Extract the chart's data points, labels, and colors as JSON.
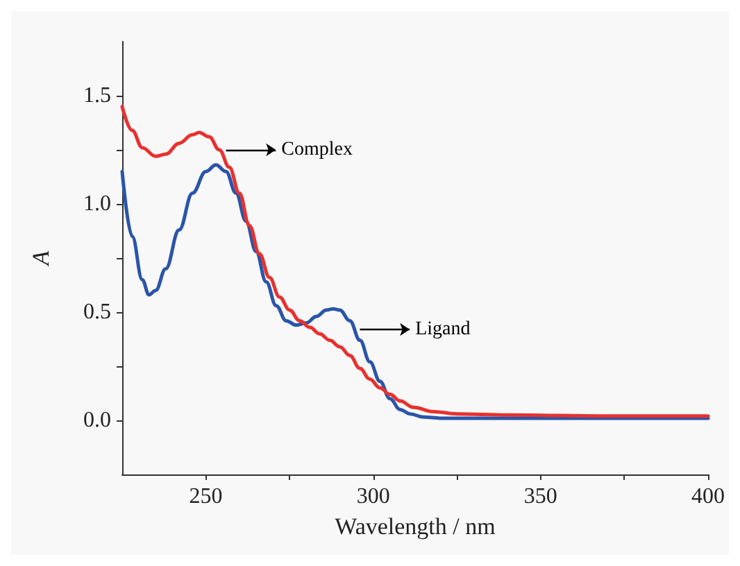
{
  "chart_data": {
    "type": "line",
    "xlabel": "Wavelength / nm",
    "ylabel": "A",
    "xlim": [
      225,
      400
    ],
    "ylim": [
      -0.25,
      1.75
    ],
    "xticks": [
      250,
      {
        "value": 275,
        "label": null
      },
      300,
      {
        "value": 325,
        "label": null
      },
      350,
      {
        "value": 375,
        "label": null
      },
      400
    ],
    "yticks": [
      {
        "value": 0,
        "label": "0.0"
      },
      {
        "value": 0.25,
        "label": null
      },
      {
        "value": 0.5,
        "label": "0.5"
      },
      {
        "value": 0.75,
        "label": null
      },
      {
        "value": 1,
        "label": "1.0"
      },
      {
        "value": 1.25,
        "label": null
      },
      {
        "value": 1.5,
        "label": "1.5"
      }
    ],
    "grid": false,
    "marker": "none",
    "line_style": "solid",
    "series": [
      {
        "color": "#2a55a8",
        "x": [
          225,
          228,
          231,
          233,
          235,
          238,
          242,
          246,
          250,
          253,
          256,
          259,
          262,
          265,
          268,
          271,
          274,
          277,
          280,
          283,
          286,
          288,
          290,
          293,
          296,
          299,
          302,
          305,
          308,
          311,
          315,
          320,
          340,
          370,
          400
        ],
        "values": [
          1.15,
          0.85,
          0.65,
          0.58,
          0.6,
          0.7,
          0.88,
          1.05,
          1.15,
          1.18,
          1.15,
          1.05,
          0.92,
          0.78,
          0.64,
          0.53,
          0.46,
          0.44,
          0.45,
          0.48,
          0.51,
          0.515,
          0.51,
          0.46,
          0.37,
          0.27,
          0.18,
          0.1,
          0.05,
          0.03,
          0.015,
          0.01,
          0.01,
          0.01,
          0.01
        ]
      },
      {
        "color": "#e8312f",
        "x": [
          225,
          228,
          231,
          235,
          238,
          242,
          246,
          248,
          251,
          254,
          257,
          260,
          263,
          266,
          269,
          272,
          275,
          278,
          281,
          284,
          287,
          290,
          293,
          296,
          299,
          302,
          305,
          308,
          312,
          318,
          325,
          340,
          370,
          400
        ],
        "values": [
          1.45,
          1.34,
          1.26,
          1.22,
          1.23,
          1.28,
          1.32,
          1.33,
          1.31,
          1.25,
          1.17,
          1.05,
          0.9,
          0.77,
          0.66,
          0.57,
          0.51,
          0.46,
          0.43,
          0.4,
          0.37,
          0.34,
          0.3,
          0.24,
          0.19,
          0.15,
          0.12,
          0.09,
          0.06,
          0.04,
          0.03,
          0.025,
          0.02,
          0.02
        ]
      }
    ],
    "annotations": [
      {
        "text": "Complex",
        "x": 256,
        "y": 1.25
      },
      {
        "text": "Ligand",
        "x": 296,
        "y": 0.42
      }
    ]
  }
}
